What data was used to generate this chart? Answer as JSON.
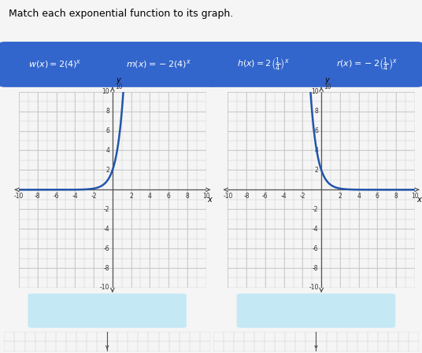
{
  "title": "Match each exponential function to its graph.",
  "title_fontsize": 9,
  "page_bg": "#f5f5f5",
  "button_bg": "#3366cc",
  "button_fg": "white",
  "button_labels_latex": [
    "$w(x) = 2(4)^x$",
    "$m(x) = -2(4)^x$",
    "$h(x) = 2\\left(\\frac{1}{4}\\right)^x$",
    "$r(x) = -2\\left(\\frac{1}{4}\\right)^x$"
  ],
  "graph_xlim": [
    -10,
    10
  ],
  "graph_ylim": [
    -10,
    10
  ],
  "curve_color": "#2255aa",
  "curve_lw": 1.8,
  "grid_color": "#c8c8c8",
  "axis_color": "#555555",
  "drop_color": "#c5e8f5",
  "graph_bg": "#ffffff",
  "graph_area_bg": "#ebebeb",
  "tick_fontsize": 5.5,
  "label_fontsize": 7
}
